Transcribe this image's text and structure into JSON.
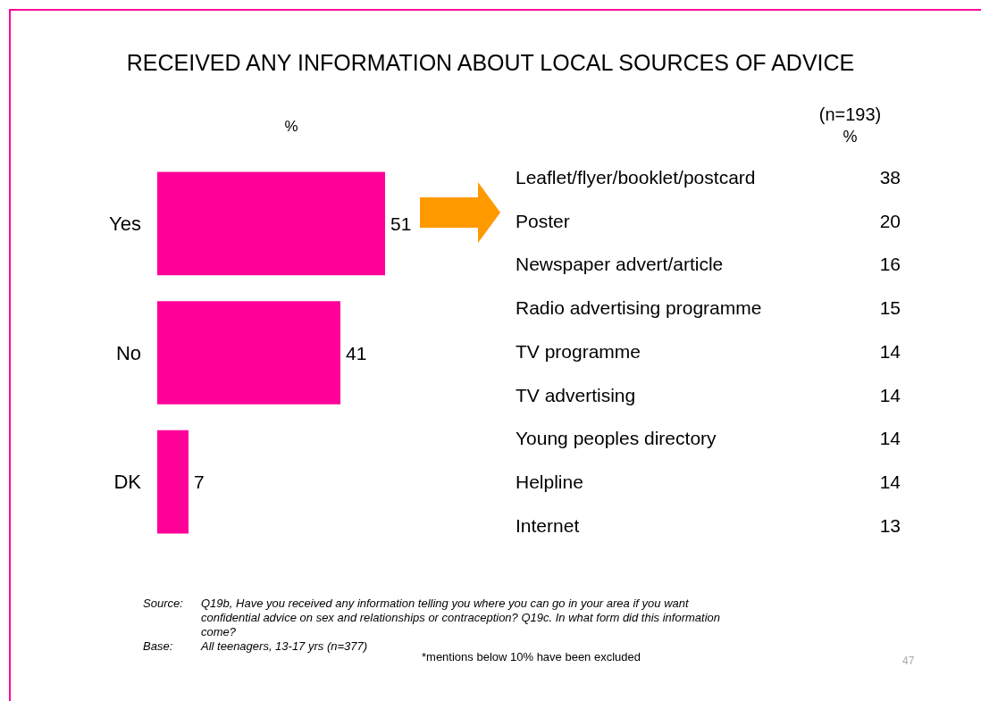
{
  "chart_data": [
    {
      "type": "bar",
      "orientation": "horizontal",
      "title": "RECEIVED ANY INFORMATION ABOUT LOCAL SOURCES OF ADVICE",
      "xlabel": "%",
      "categories": [
        "Yes",
        "No",
        "DK"
      ],
      "values": [
        51,
        41,
        7
      ],
      "color": "#ff0099",
      "data_labels": true,
      "annotations": [
        "Source: Q19b, Have you received any information telling you where you can go in your area if you want confidential advice on sex and relationships or contraception? Q19c. In what form did this information come?",
        "Base: All teenagers, 13-17 yrs (n=377)",
        "*mentions below 10% have been excluded",
        "47"
      ]
    },
    {
      "type": "other",
      "title": "(n=193)",
      "subtitle": "%",
      "categories": [
        "Leaflet/flyer/booklet/postcard",
        "Poster",
        "Newspaper advert/article",
        "Radio advertising programme",
        "TV programme",
        "TV advertising",
        "Young peoples directory",
        "Helpline",
        "Internet"
      ],
      "values": [
        38,
        20,
        16,
        15,
        14,
        14,
        14,
        14,
        13
      ],
      "data_labels": true
    }
  ]
}
